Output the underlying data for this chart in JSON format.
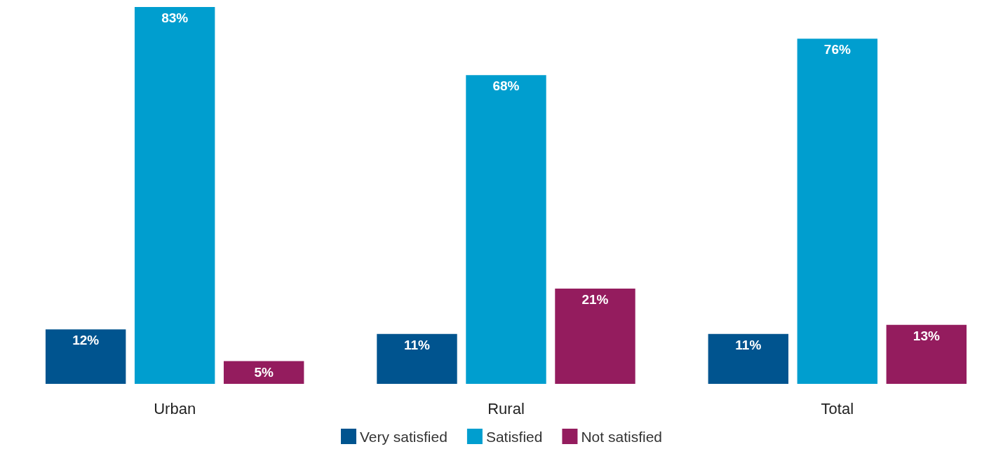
{
  "chart_data": {
    "type": "bar",
    "categories": [
      "Urban",
      "Rural",
      "Total"
    ],
    "series": [
      {
        "name": "Very satisfied",
        "color": "#00548f",
        "values": [
          12,
          11,
          11
        ],
        "value_labels": [
          "12%",
          "11%",
          "11%"
        ]
      },
      {
        "name": "Satisfied",
        "color": "#009ecf",
        "values": [
          83,
          68,
          76
        ],
        "value_labels": [
          "83%",
          "68%",
          "76%"
        ]
      },
      {
        "name": "Not satisfied",
        "color": "#941c5e",
        "values": [
          5,
          21,
          13
        ],
        "value_labels": [
          "5%",
          "21%",
          "13%"
        ]
      }
    ],
    "legend": "bottom",
    "grid": false
  }
}
